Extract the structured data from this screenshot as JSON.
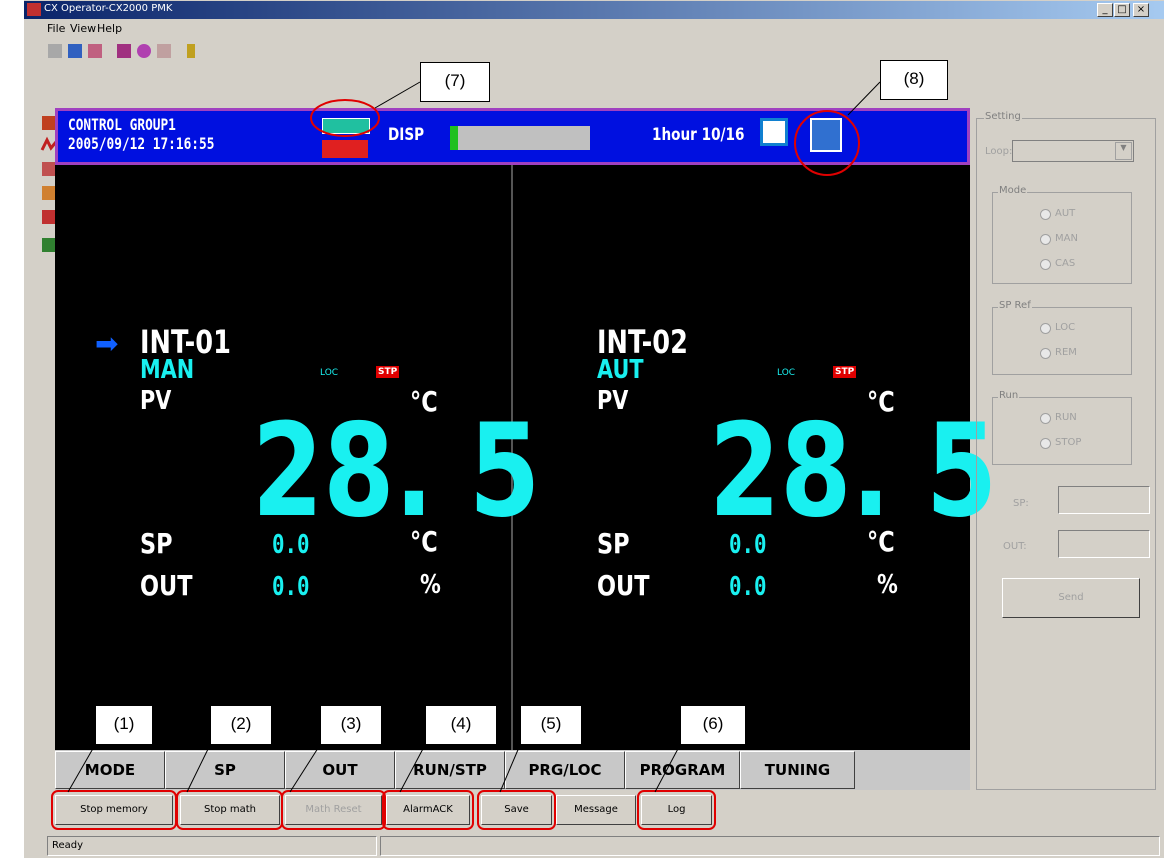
{
  "window": {
    "title": "CX Operator-CX2000 PMK",
    "menu": [
      "File",
      "View",
      "Help"
    ]
  },
  "header": {
    "group": "CONTROL GROUP1",
    "datetime": "2005/09/12 17:16:55",
    "disp": "DISP",
    "time_scale": "1hour 10/16"
  },
  "loops": [
    {
      "name": "INT-01",
      "mode": "MAN",
      "loc": "LOC",
      "stp": "STP",
      "pv_label": "PV",
      "pv_unit": "°C",
      "pv_value": "28. 5",
      "sp_label": "SP",
      "sp_value": "0.0",
      "sp_unit": "°C",
      "out_label": "OUT",
      "out_value": "0.0",
      "out_unit": "%"
    },
    {
      "name": "INT-02",
      "mode": "AUT",
      "loc": "LOC",
      "stp": "STP",
      "pv_label": "PV",
      "pv_unit": "°C",
      "pv_value": "28. 5",
      "sp_label": "SP",
      "sp_value": "0.0",
      "sp_unit": "°C",
      "out_label": "OUT",
      "out_value": "0.0",
      "out_unit": "%"
    }
  ],
  "tabs": [
    "MODE",
    "SP",
    "OUT",
    "RUN/STP",
    "PRG/LOC",
    "PROGRAM",
    "TUNING"
  ],
  "buttons": [
    "Stop memory",
    "Stop math",
    "Math Reset",
    "AlarmACK",
    "Save",
    "Message",
    "Log"
  ],
  "status": "Ready",
  "setting": {
    "title": "Setting",
    "loop_label": "Loop:",
    "mode_title": "Mode",
    "mode_options": [
      "AUT",
      "MAN",
      "CAS"
    ],
    "spref_title": "SP Ref",
    "spref_options": [
      "LOC",
      "REM"
    ],
    "run_title": "Run",
    "run_options": [
      "RUN",
      "STOP"
    ],
    "sp_label": "SP:",
    "out_label": "OUT:",
    "send": "Send"
  },
  "annotations": [
    "(1)",
    "(2)",
    "(3)",
    "(4)",
    "(5)",
    "(6)",
    "(7)",
    "(8)"
  ]
}
